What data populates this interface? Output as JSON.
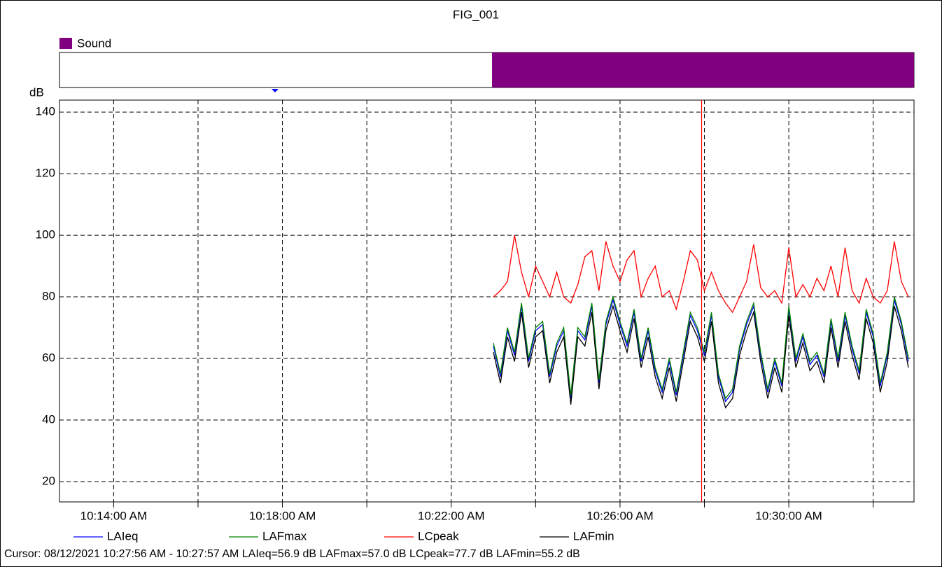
{
  "chart_data": {
    "type": "line",
    "title": "FIG_001",
    "y_label": "dB",
    "sound_band": {
      "name": "Sound",
      "color": "#800080",
      "start": "10:22:58",
      "end": "10:32:58"
    },
    "xlim": [
      "10:12:43",
      "10:32:58"
    ],
    "xticks": [
      {
        "value": "10:14:00",
        "label": "10:14:00 AM"
      },
      {
        "value": "10:18:00",
        "label": "10:18:00 AM"
      },
      {
        "value": "10:22:00",
        "label": "10:22:00 AM"
      },
      {
        "value": "10:26:00",
        "label": "10:26:00 AM"
      },
      {
        "value": "10:30:00",
        "label": "10:30:00 AM"
      }
    ],
    "xminor": [
      "10:16:00",
      "10:20:00",
      "10:24:00",
      "10:28:00",
      "10:32:00"
    ],
    "ylim": [
      13.4,
      143.9
    ],
    "yticks": [
      20,
      40,
      60,
      80,
      100,
      120,
      140
    ],
    "grid": true,
    "x": [
      "10:23:00",
      "10:23:10",
      "10:23:20",
      "10:23:30",
      "10:23:40",
      "10:23:50",
      "10:24:00",
      "10:24:10",
      "10:24:20",
      "10:24:30",
      "10:24:40",
      "10:24:50",
      "10:25:00",
      "10:25:10",
      "10:25:20",
      "10:25:30",
      "10:25:40",
      "10:25:50",
      "10:26:00",
      "10:26:10",
      "10:26:20",
      "10:26:30",
      "10:26:40",
      "10:26:50",
      "10:27:00",
      "10:27:10",
      "10:27:20",
      "10:27:30",
      "10:27:40",
      "10:27:50",
      "10:28:00",
      "10:28:10",
      "10:28:20",
      "10:28:30",
      "10:28:40",
      "10:28:50",
      "10:29:00",
      "10:29:10",
      "10:29:20",
      "10:29:30",
      "10:29:40",
      "10:29:50",
      "10:30:00",
      "10:30:10",
      "10:30:20",
      "10:30:30",
      "10:30:40",
      "10:30:50",
      "10:31:00",
      "10:31:10",
      "10:31:20",
      "10:31:30",
      "10:31:40",
      "10:31:50",
      "10:32:00",
      "10:32:10",
      "10:32:20",
      "10:32:30",
      "10:32:40",
      "10:32:50"
    ],
    "series": [
      {
        "name": "LAIeq",
        "color": "#0000ff",
        "values": [
          64,
          54,
          69,
          61,
          77,
          59,
          69,
          71,
          54,
          64,
          69,
          47,
          69,
          66,
          77,
          52,
          71,
          79,
          71,
          64,
          75,
          59,
          69,
          56,
          49,
          59,
          48,
          61,
          74,
          69,
          61,
          74,
          54,
          46,
          49,
          63,
          71,
          77,
          61,
          49,
          59,
          51,
          76,
          59,
          67,
          58,
          61,
          54,
          72,
          59,
          74,
          63,
          55,
          75,
          67,
          51,
          61,
          79,
          71,
          59
        ]
      },
      {
        "name": "LAFmax",
        "color": "#008000",
        "values": [
          65,
          55,
          70,
          62,
          78,
          60,
          70,
          72,
          55,
          65,
          70,
          48,
          70,
          67,
          78,
          53,
          72,
          80,
          72,
          65,
          76,
          60,
          70,
          57,
          50,
          60,
          49,
          62,
          75,
          70,
          62,
          75,
          55,
          47,
          50,
          64,
          72,
          78,
          62,
          50,
          60,
          52,
          77,
          60,
          68,
          59,
          62,
          55,
          73,
          60,
          75,
          64,
          56,
          76,
          68,
          52,
          62,
          80,
          72,
          60
        ]
      },
      {
        "name": "LCpeak",
        "color": "#ff0000",
        "values": [
          80,
          82,
          85,
          100,
          88,
          80,
          90,
          85,
          80,
          88,
          80,
          78,
          84,
          93,
          95,
          82,
          98,
          90,
          85,
          92,
          95,
          80,
          86,
          90,
          80,
          82,
          76,
          85,
          95,
          92,
          82,
          88,
          82,
          78,
          75,
          80,
          85,
          97,
          83,
          80,
          82,
          78,
          96,
          80,
          84,
          80,
          86,
          82,
          90,
          80,
          96,
          82,
          78,
          86,
          80,
          78,
          82,
          98,
          85,
          80
        ]
      },
      {
        "name": "LAFmin",
        "color": "#000000",
        "values": [
          62,
          52,
          67,
          59,
          75,
          57,
          67,
          69,
          52,
          62,
          67,
          45,
          67,
          64,
          75,
          50,
          69,
          77,
          69,
          62,
          73,
          57,
          67,
          54,
          47,
          57,
          46,
          59,
          72,
          67,
          59,
          72,
          52,
          44,
          47,
          61,
          69,
          75,
          59,
          47,
          57,
          49,
          74,
          57,
          65,
          56,
          59,
          52,
          70,
          57,
          72,
          61,
          53,
          73,
          65,
          49,
          59,
          77,
          69,
          57
        ]
      }
    ],
    "cursor": {
      "x": "10:27:56",
      "color": "#ff0000",
      "text": "Cursor: 08/12/2021 10:27:56 AM - 10:27:57 AM  LAIeq=56.9 dB  LAFmax=57.0 dB  LCpeak=77.7 dB  LAFmin=55.2 dB"
    }
  }
}
